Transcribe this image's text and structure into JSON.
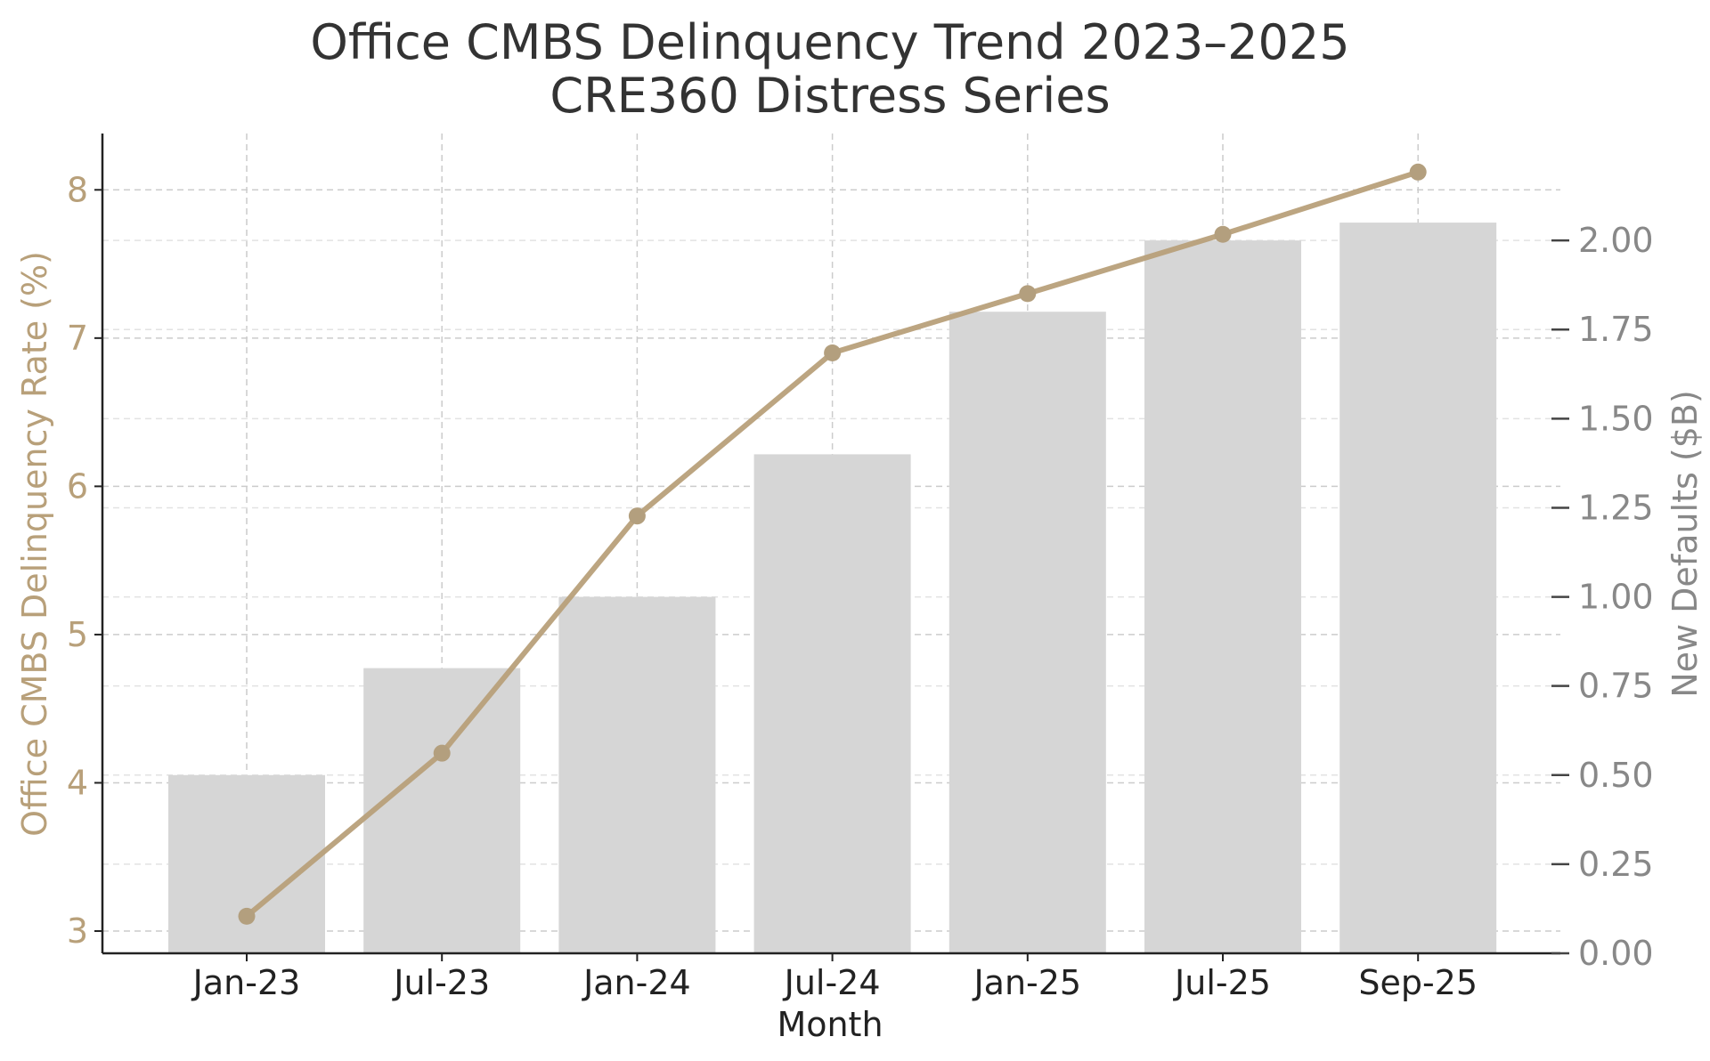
{
  "chart_data": {
    "type": "bar",
    "title": "Office CMBS Delinquency Trend 2023–2025",
    "subtitle": "CRE360 Distress Series",
    "xlabel": "Month",
    "ylabel_left": "Office CMBS Delinquency Rate (%)",
    "ylabel_right": "New Defaults ($B)",
    "categories": [
      "Jan-23",
      "Jul-23",
      "Jan-24",
      "Jul-24",
      "Jan-25",
      "Jul-25",
      "Sep-25"
    ],
    "series": [
      {
        "name": "Office CMBS Delinquency Rate (%)",
        "type": "line",
        "axis": "left",
        "color": "#b8a07a",
        "values": [
          3.1,
          4.2,
          5.8,
          6.9,
          7.3,
          7.7,
          8.12
        ]
      },
      {
        "name": "New Defaults ($B)",
        "type": "bar",
        "axis": "right",
        "color": "#d6d6d6",
        "values": [
          0.5,
          0.8,
          1.0,
          1.4,
          1.8,
          2.0,
          2.05
        ]
      }
    ],
    "ylim_left": [
      2.85,
      8.38
    ],
    "ylim_right": [
      0.0,
      2.3
    ],
    "yticks_left": [
      "3",
      "4",
      "5",
      "6",
      "7",
      "8"
    ],
    "yticks_left_values": [
      3,
      4,
      5,
      6,
      7,
      8
    ],
    "yticks_right": [
      "0.00",
      "0.25",
      "0.50",
      "0.75",
      "1.00",
      "1.25",
      "1.50",
      "1.75",
      "2.00"
    ],
    "yticks_right_values": [
      0,
      0.25,
      0.5,
      0.75,
      1.0,
      1.25,
      1.5,
      1.75,
      2.0
    ],
    "grid": true,
    "colors": {
      "left_axis_text": "#b8a07a",
      "right_axis_text": "#888888",
      "line": "#b8a07a",
      "marker": "#b39f7e",
      "bar": "#d6d6d6",
      "grid": "#cccccc"
    }
  }
}
